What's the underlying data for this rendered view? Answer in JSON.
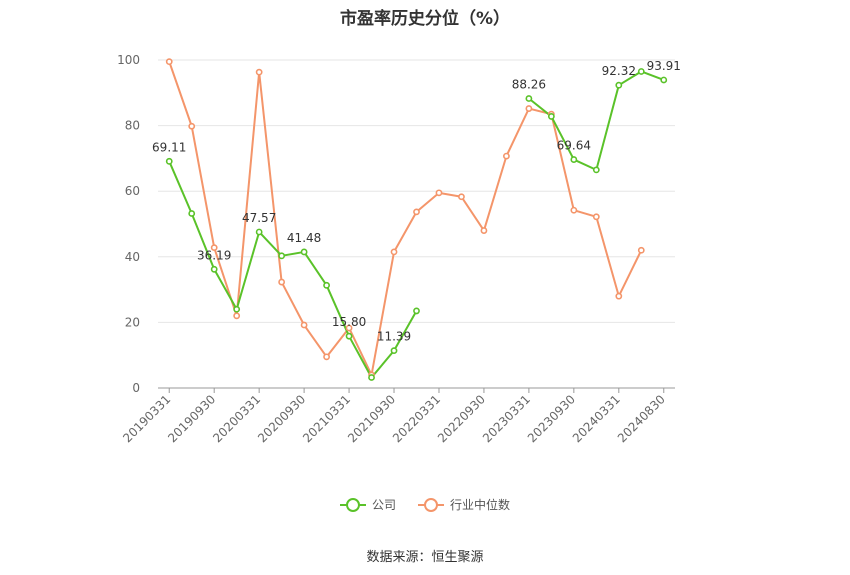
{
  "title": "市盈率历史分位（%）",
  "source": "数据来源：恒生聚源",
  "chart_data": {
    "type": "line",
    "title": "市盈率历史分位（%）",
    "x": [
      "20190331",
      "20190630",
      "20190930",
      "20191231",
      "20200331",
      "20200630",
      "20200930",
      "20201231",
      "20210331",
      "20210630",
      "20210930",
      "20211231",
      "20220331",
      "20220630",
      "20220930",
      "20221231",
      "20230331",
      "20230630",
      "20230930",
      "20231231",
      "20240331",
      "20240630",
      "20240830"
    ],
    "x_tick_labels": [
      "20190331",
      "20190930",
      "20200331",
      "20200930",
      "20210331",
      "20210930",
      "20220331",
      "20220930",
      "20230331",
      "20230930",
      "20240331",
      "20240830"
    ],
    "ylim": [
      0,
      100
    ],
    "y_ticks": [
      0,
      20,
      40,
      60,
      80,
      100
    ],
    "grid": true,
    "legend_position": "bottom",
    "series": [
      {
        "name": "公司",
        "color": "#5ac229",
        "values": [
          69.11,
          53.2,
          36.19,
          24.0,
          47.57,
          40.3,
          41.48,
          31.3,
          15.8,
          3.2,
          11.39,
          23.5,
          null,
          null,
          null,
          null,
          88.26,
          82.8,
          69.64,
          66.5,
          92.32,
          96.5,
          93.91
        ],
        "data_labels": [
          {
            "index": 0,
            "text": "69.11"
          },
          {
            "index": 2,
            "text": "36.19"
          },
          {
            "index": 4,
            "text": "47.57"
          },
          {
            "index": 6,
            "text": "41.48"
          },
          {
            "index": 8,
            "text": "15.80"
          },
          {
            "index": 10,
            "text": "11.39"
          },
          {
            "index": 16,
            "text": "88.26"
          },
          {
            "index": 18,
            "text": "69.64"
          },
          {
            "index": 20,
            "text": "92.32"
          },
          {
            "index": 22,
            "text": "93.91"
          }
        ]
      },
      {
        "name": "行业中位数",
        "color": "#f4956a",
        "values": [
          99.5,
          79.8,
          42.8,
          22.0,
          96.3,
          32.3,
          19.2,
          9.5,
          18.3,
          4.0,
          41.5,
          53.7,
          59.5,
          58.3,
          48.0,
          70.7,
          85.2,
          83.5,
          54.2,
          52.2,
          28.0,
          42.0,
          null
        ]
      }
    ]
  }
}
